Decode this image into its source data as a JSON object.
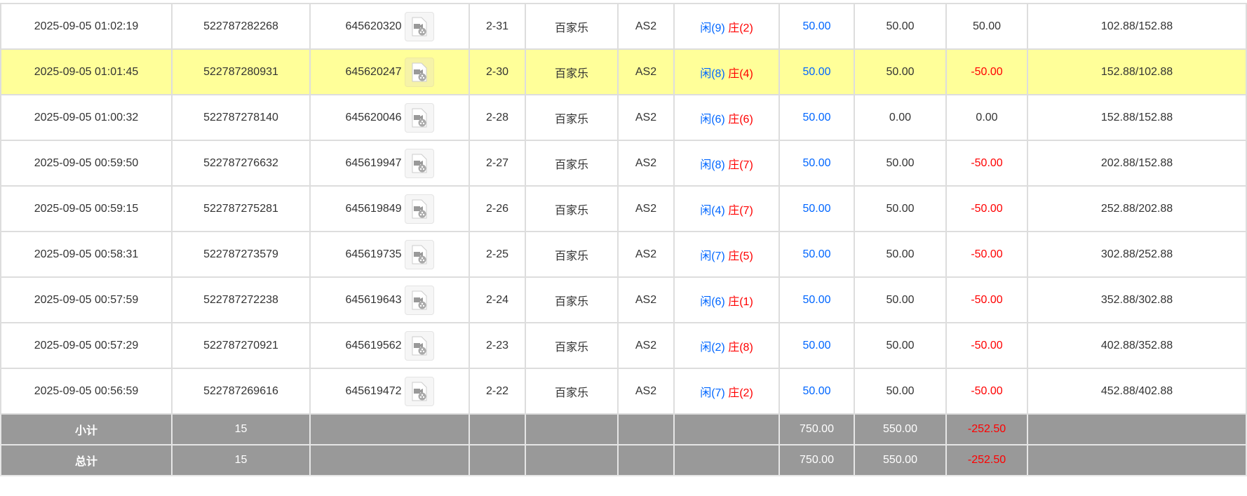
{
  "rows": [
    {
      "time": "2025-09-05 01:02:19",
      "bet_id": "522787282268",
      "round_id": "645620320",
      "shoe": "2-31",
      "game": "百家乐",
      "table": "AS2",
      "player": "闲(9)",
      "banker": "庄(2)",
      "bet": "50.00",
      "valid": "50.00",
      "win": "50.00",
      "balance": "102.88/152.88",
      "highlight": false
    },
    {
      "time": "2025-09-05 01:01:45",
      "bet_id": "522787280931",
      "round_id": "645620247",
      "shoe": "2-30",
      "game": "百家乐",
      "table": "AS2",
      "player": "闲(8)",
      "banker": "庄(4)",
      "bet": "50.00",
      "valid": "50.00",
      "win": "-50.00",
      "balance": "152.88/102.88",
      "highlight": true
    },
    {
      "time": "2025-09-05 01:00:32",
      "bet_id": "522787278140",
      "round_id": "645620046",
      "shoe": "2-28",
      "game": "百家乐",
      "table": "AS2",
      "player": "闲(6)",
      "banker": "庄(6)",
      "bet": "50.00",
      "valid": "0.00",
      "win": "0.00",
      "balance": "152.88/152.88",
      "highlight": false
    },
    {
      "time": "2025-09-05 00:59:50",
      "bet_id": "522787276632",
      "round_id": "645619947",
      "shoe": "2-27",
      "game": "百家乐",
      "table": "AS2",
      "player": "闲(8)",
      "banker": "庄(7)",
      "bet": "50.00",
      "valid": "50.00",
      "win": "-50.00",
      "balance": "202.88/152.88",
      "highlight": false
    },
    {
      "time": "2025-09-05 00:59:15",
      "bet_id": "522787275281",
      "round_id": "645619849",
      "shoe": "2-26",
      "game": "百家乐",
      "table": "AS2",
      "player": "闲(4)",
      "banker": "庄(7)",
      "bet": "50.00",
      "valid": "50.00",
      "win": "-50.00",
      "balance": "252.88/202.88",
      "highlight": false
    },
    {
      "time": "2025-09-05 00:58:31",
      "bet_id": "522787273579",
      "round_id": "645619735",
      "shoe": "2-25",
      "game": "百家乐",
      "table": "AS2",
      "player": "闲(7)",
      "banker": "庄(5)",
      "bet": "50.00",
      "valid": "50.00",
      "win": "-50.00",
      "balance": "302.88/252.88",
      "highlight": false
    },
    {
      "time": "2025-09-05 00:57:59",
      "bet_id": "522787272238",
      "round_id": "645619643",
      "shoe": "2-24",
      "game": "百家乐",
      "table": "AS2",
      "player": "闲(6)",
      "banker": "庄(1)",
      "bet": "50.00",
      "valid": "50.00",
      "win": "-50.00",
      "balance": "352.88/302.88",
      "highlight": false
    },
    {
      "time": "2025-09-05 00:57:29",
      "bet_id": "522787270921",
      "round_id": "645619562",
      "shoe": "2-23",
      "game": "百家乐",
      "table": "AS2",
      "player": "闲(2)",
      "banker": "庄(8)",
      "bet": "50.00",
      "valid": "50.00",
      "win": "-50.00",
      "balance": "402.88/352.88",
      "highlight": false
    },
    {
      "time": "2025-09-05 00:56:59",
      "bet_id": "522787269616",
      "round_id": "645619472",
      "shoe": "2-22",
      "game": "百家乐",
      "table": "AS2",
      "player": "闲(7)",
      "banker": "庄(2)",
      "bet": "50.00",
      "valid": "50.00",
      "win": "-50.00",
      "balance": "452.88/402.88",
      "highlight": false
    }
  ],
  "summary": [
    {
      "label": "小计",
      "count": "15",
      "bet": "750.00",
      "valid": "550.00",
      "win": "-252.50"
    },
    {
      "label": "总计",
      "count": "15",
      "bet": "750.00",
      "valid": "550.00",
      "win": "-252.50"
    }
  ],
  "colors": {
    "player": "#0066ff",
    "banker": "#ff0000",
    "highlight": "#ffff99",
    "summary_bg": "#999999"
  },
  "icons": {
    "replay": "video-file-icon"
  }
}
